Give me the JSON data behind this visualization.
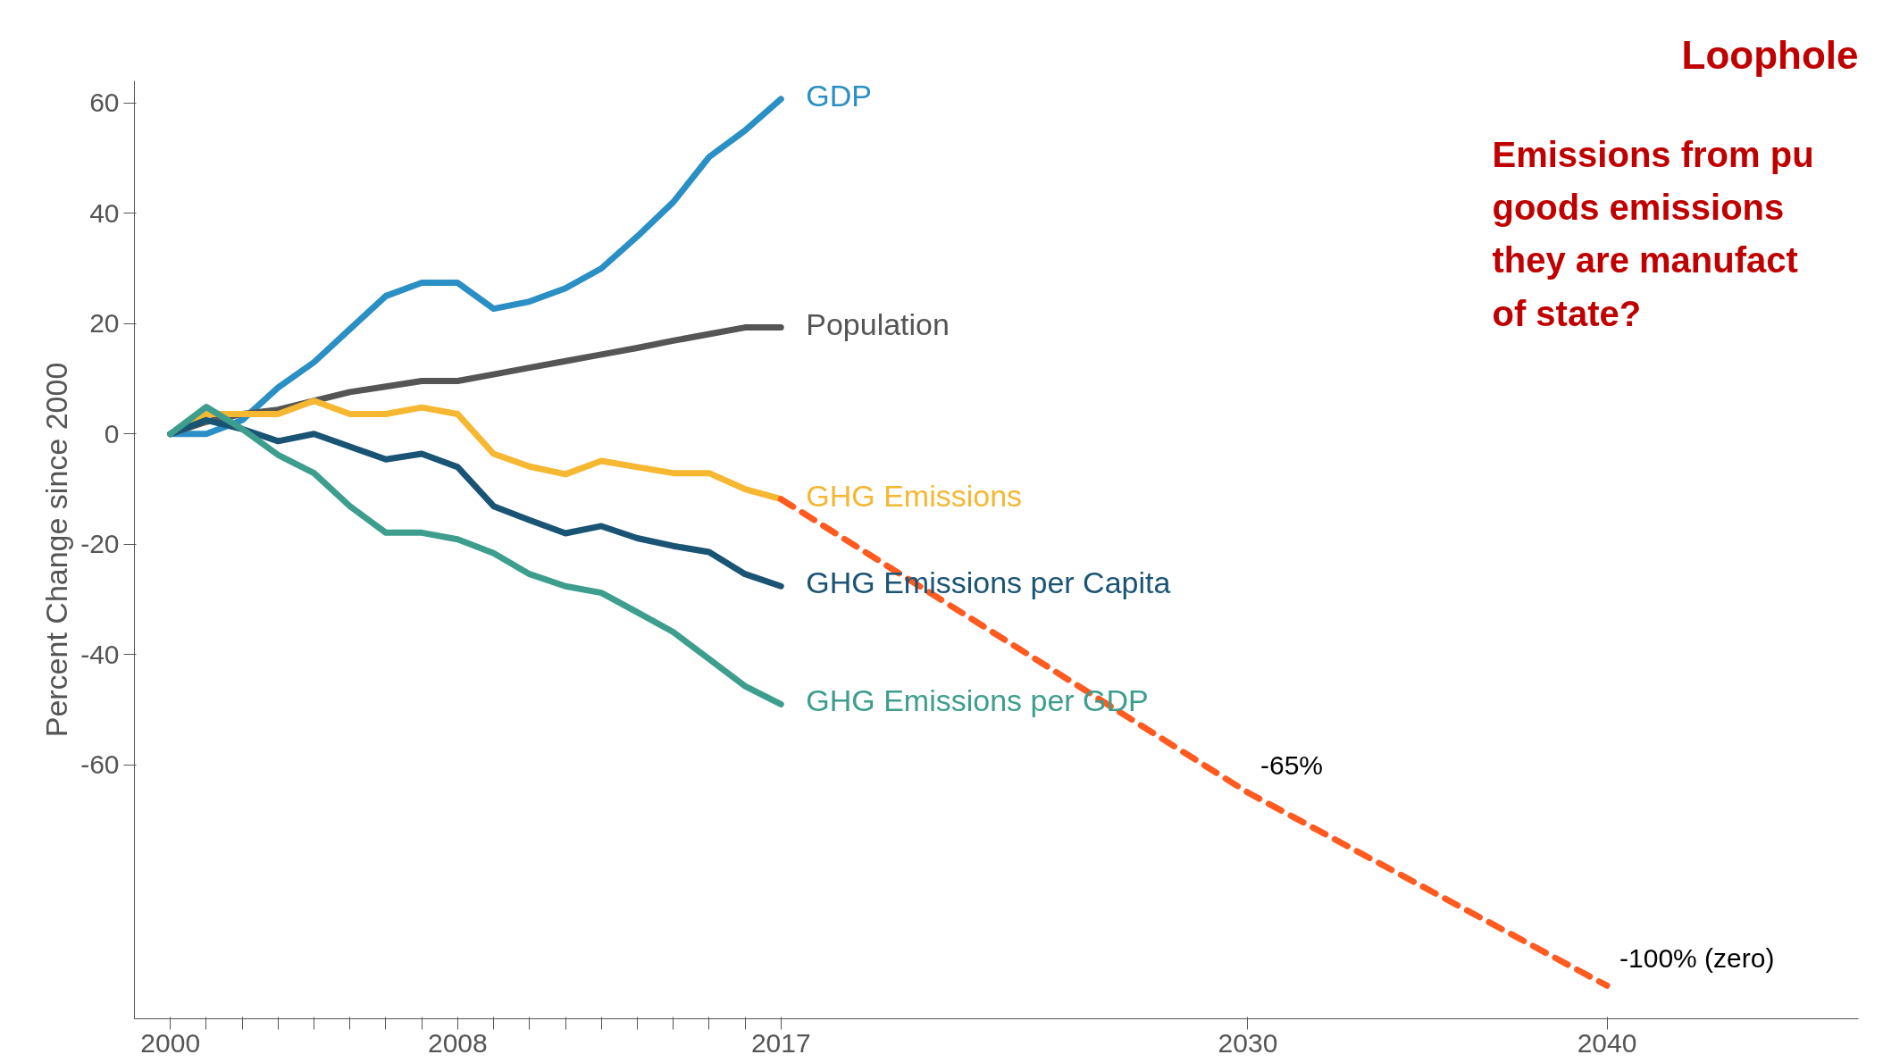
{
  "chart_data": {
    "type": "line",
    "title": "Loophole",
    "ylabel": "Percent Change since 2000",
    "annotations": [
      "Emissions from pu\ngoods emissions\nthey are manufact\nof state?"
    ],
    "xlim": [
      1999,
      2047
    ],
    "ylim": [
      -106,
      64
    ],
    "xticks": [
      {
        "value": 2000,
        "label": "2000"
      },
      {
        "value": 2001,
        "label": null
      },
      {
        "value": 2002,
        "label": null
      },
      {
        "value": 2003,
        "label": null
      },
      {
        "value": 2004,
        "label": null
      },
      {
        "value": 2005,
        "label": null
      },
      {
        "value": 2006,
        "label": null
      },
      {
        "value": 2007,
        "label": null
      },
      {
        "value": 2008,
        "label": "2008"
      },
      {
        "value": 2009,
        "label": null
      },
      {
        "value": 2010,
        "label": null
      },
      {
        "value": 2011,
        "label": null
      },
      {
        "value": 2012,
        "label": null
      },
      {
        "value": 2013,
        "label": null
      },
      {
        "value": 2014,
        "label": null
      },
      {
        "value": 2015,
        "label": null
      },
      {
        "value": 2016,
        "label": null
      },
      {
        "value": 2017,
        "label": "2017"
      },
      {
        "value": 2030,
        "label": "2030"
      },
      {
        "value": 2040,
        "label": "2040"
      }
    ],
    "yticks": [
      -60,
      -40,
      -20,
      0,
      20,
      40,
      60
    ],
    "x": [
      2000,
      2001,
      2002,
      2003,
      2004,
      2005,
      2006,
      2007,
      2008,
      2009,
      2010,
      2011,
      2012,
      2013,
      2014,
      2015,
      2016,
      2017
    ],
    "series": [
      {
        "name": "GDP",
        "color": "#2a8fc4",
        "values": [
          0,
          0,
          2.5,
          8.4,
          13,
          19,
          25,
          27.4,
          27.4,
          22.7,
          24,
          26.4,
          30,
          35.8,
          42,
          50.2,
          55,
          60.7
        ]
      },
      {
        "name": "Population",
        "color": "#555555",
        "values": [
          0,
          2.2,
          3.6,
          4.4,
          6,
          7.6,
          8.6,
          9.6,
          9.6,
          10.8,
          12,
          13.2,
          14.4,
          15.6,
          16.9,
          18.1,
          19.3,
          19.3
        ]
      },
      {
        "name": "GHG Emissions",
        "color": "#f6b731",
        "values": [
          0,
          3.6,
          3.6,
          3.6,
          6,
          3.6,
          3.6,
          4.8,
          3.6,
          -3.6,
          -5.9,
          -7.3,
          -4.9,
          -6,
          -7.1,
          -7.1,
          -10,
          -11.8
        ]
      },
      {
        "name": "GHG Emissions per Capita",
        "color": "#1a5474",
        "values": [
          0,
          2.5,
          0.9,
          -1.3,
          0,
          -2.3,
          -4.6,
          -3.6,
          -6,
          -13.1,
          -15.6,
          -18,
          -16.7,
          -18.9,
          -20.3,
          -21.4,
          -25.4,
          -27.6
        ]
      },
      {
        "name": "GHG Emissions per GDP",
        "color": "#3e9e8e",
        "values": [
          0,
          4.9,
          0.9,
          -3.8,
          -7.1,
          -13.1,
          -17.9,
          -17.9,
          -19.1,
          -21.6,
          -25.4,
          -27.6,
          -28.8,
          -32.3,
          -35.9,
          -40.8,
          -45.7,
          -49
        ]
      },
      {
        "color": "#ff5a1f",
        "line_style": "dashed",
        "x": [
          2017,
          2030,
          2040
        ],
        "values": [
          -11.8,
          -65,
          -100
        ],
        "value_labels": [
          null,
          "-65%",
          "-100% (zero)"
        ]
      }
    ]
  }
}
